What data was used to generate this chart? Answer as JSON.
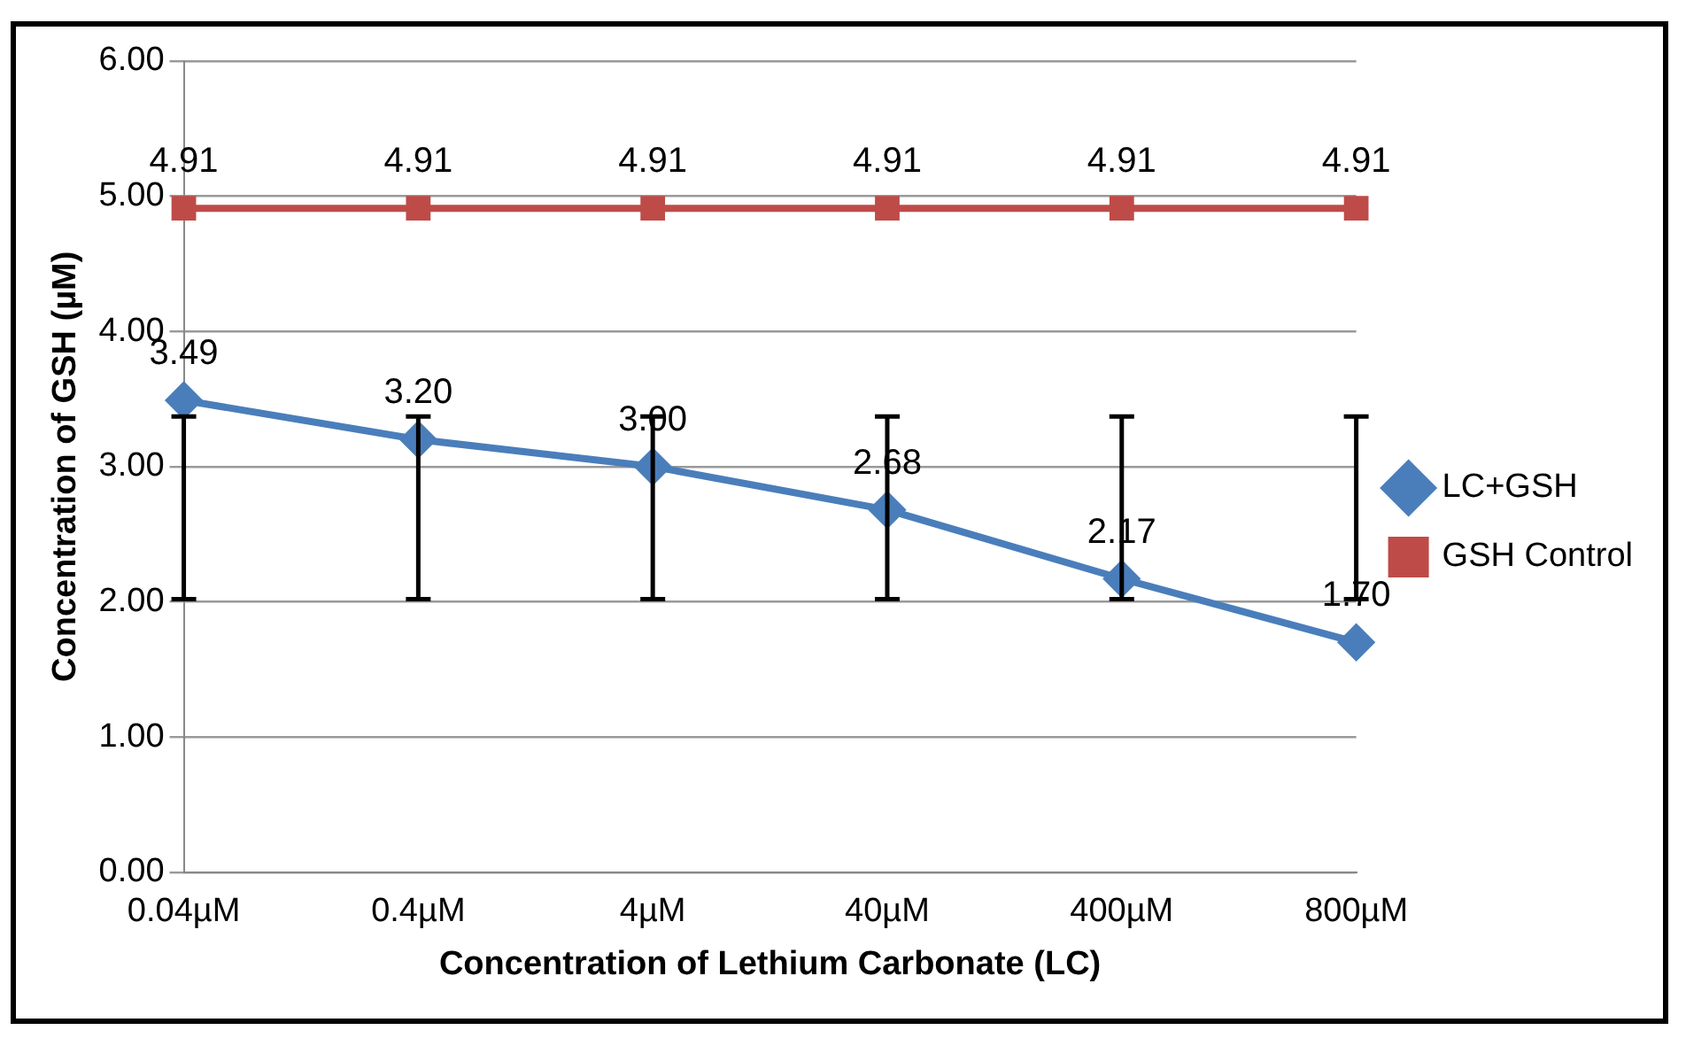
{
  "chart_data": {
    "type": "line",
    "xlabel": "Concentration of Lethium Carbonate (LC)",
    "ylabel": "Concentration of GSH (µM)",
    "categories": [
      "0.04µM",
      "0.4µM",
      "4µM",
      "40µM",
      "400µM",
      "800µM"
    ],
    "series": [
      {
        "name": "LC+GSH",
        "color": "#4a7ebb",
        "marker": "diamond",
        "values": [
          3.49,
          3.2,
          3.0,
          2.68,
          2.17,
          1.7
        ],
        "value_labels": [
          "3.49",
          "3.20",
          "3.00",
          "2.68",
          "2.17",
          "1.70"
        ],
        "errors": [
          [
            2.02,
            3.37
          ],
          [
            2.02,
            3.37
          ],
          [
            2.02,
            3.37
          ],
          [
            2.02,
            3.37
          ],
          [
            2.02,
            3.37
          ],
          [
            2.02,
            3.37
          ]
        ]
      },
      {
        "name": "GSH Control",
        "color": "#be4b48",
        "marker": "square",
        "values": [
          4.91,
          4.91,
          4.91,
          4.91,
          4.91,
          4.91
        ],
        "value_labels": [
          "4.91",
          "4.91",
          "4.91",
          "4.91",
          "4.91",
          "4.91"
        ]
      }
    ],
    "ylim": [
      0,
      6
    ],
    "yticks": [
      {
        "value": 0,
        "label": "0.00"
      },
      {
        "value": 1,
        "label": "1.00"
      },
      {
        "value": 2,
        "label": "2.00"
      },
      {
        "value": 3,
        "label": "3.00"
      },
      {
        "value": 4,
        "label": "4.00"
      },
      {
        "value": 5,
        "label": "5.00"
      },
      {
        "value": 6,
        "label": "6.00"
      }
    ],
    "grid": "y",
    "legend": "right"
  }
}
